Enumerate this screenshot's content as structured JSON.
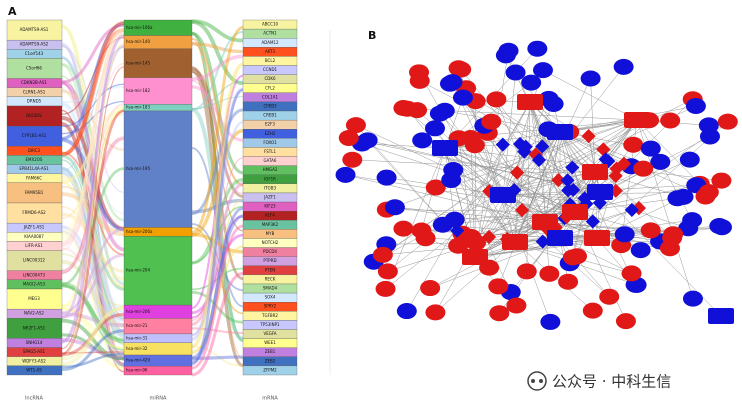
{
  "panel_a": {
    "label": "A",
    "columns": [
      {
        "title": "lncRNA",
        "nodes": [
          "ADAMTS9-AS1",
          "ADAMTS9-AS2",
          "C1orf143",
          "C5orf66",
          "CDKN2B-AS1",
          "CLRN1-AS1",
          "DRND5",
          "DIO3OS",
          "CYP1B1-AS1",
          "DIRC3",
          "EMX2OS",
          "EPB41L4A-AS1",
          "FAM66C",
          "FAM95B1",
          "FRMD6-AS2",
          "JAZF1-AS1",
          "KIAA0087",
          "LIFR-AS1",
          "LINC00312",
          "LINC00473",
          "MAGI2-AS3",
          "MEG3",
          "NAV2-AS2",
          "NR2F1-AS1",
          "SNHG14",
          "SPAG5-AS1",
          "WDFY3-AS2",
          "WT1-AS"
        ]
      },
      {
        "title": "miRNA",
        "nodes": [
          "hsa-mir-106a",
          "hsa-mir-140",
          "hsa-mir-145",
          "hsa-mir-182",
          "hsa-mir-183",
          "hsa-mir-195",
          "hsa-mir-200a",
          "hsa-mir-204",
          "hsa-mir-206",
          "hsa-mir-21",
          "hsa-mir-31",
          "hsa-mir-32",
          "hsa-mir-429",
          "hsa-mir-96"
        ]
      },
      {
        "title": "mRNA",
        "nodes": [
          "ABCC10",
          "ACTN1",
          "ADAM12",
          "AKT3",
          "BCL2",
          "CCND1",
          "CDK6",
          "CFL2",
          "COL1A1",
          "CPEB3",
          "CREB1",
          "E2F3",
          "EZH2",
          "FOXO1",
          "FSTL1",
          "GATA6",
          "HMGA2",
          "IGF1R",
          "ITGB3",
          "JAZF1",
          "KIF23",
          "KLF4",
          "MAP3K2",
          "MYB",
          "NOTCH2",
          "PDCD4",
          "PTPRD",
          "PTEN",
          "RECK",
          "SMAD4",
          "SOX4",
          "SPRY2",
          "TGFBR2",
          "TP53INP1",
          "VEGFA",
          "WEE1",
          "ZEB1",
          "ZEB2",
          "ZFPM2"
        ]
      }
    ]
  },
  "panel_b": {
    "label": "B"
  },
  "watermark": "公众号 · 中科生信"
}
